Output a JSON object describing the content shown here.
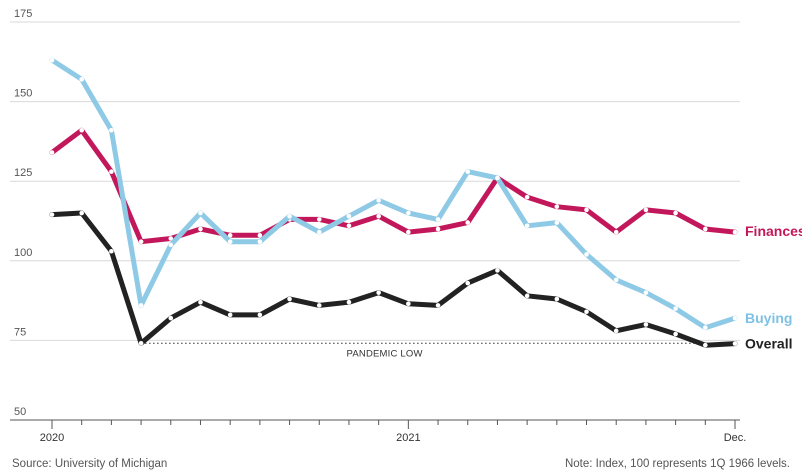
{
  "chart_data": {
    "type": "line",
    "title": "",
    "xlabel": "",
    "ylabel": "",
    "ylim": [
      50,
      175
    ],
    "yticks": [
      175,
      150,
      125,
      100,
      75,
      50
    ],
    "grid": true,
    "x_tick_labels": [
      {
        "label": "2020",
        "index": 0
      },
      {
        "label": "2021",
        "index": 12
      },
      {
        "label": "Dec.",
        "index": 23
      }
    ],
    "annotation": {
      "text": "PANDEMIC LOW",
      "value": 74.1,
      "from_index": 3,
      "to_index": 23
    },
    "series": [
      {
        "name": "Finances",
        "color": "#c2185b",
        "values": [
          134,
          141,
          128,
          106,
          107,
          110,
          108,
          108,
          113,
          113,
          111,
          114,
          109,
          110,
          112,
          126,
          120,
          117,
          116,
          109,
          116,
          115,
          110,
          109
        ]
      },
      {
        "name": "Buying",
        "color": "#8ecae6",
        "values": [
          163,
          157,
          141,
          86,
          105,
          115,
          106,
          106,
          114,
          109,
          114,
          119,
          115,
          113,
          128,
          126,
          111,
          112,
          102,
          94,
          90,
          85,
          79,
          82
        ]
      },
      {
        "name": "Overall",
        "color": "#222222",
        "values": [
          114.5,
          115,
          103,
          74.1,
          82,
          87,
          83,
          83,
          88,
          86,
          87,
          90,
          86.5,
          86,
          93,
          97,
          89,
          88,
          84,
          78,
          80,
          77,
          73.5,
          74
        ]
      }
    ]
  },
  "footer": {
    "source": "Source: University of Michigan",
    "note": "Note: Index, 100 represents 1Q 1966 levels."
  }
}
